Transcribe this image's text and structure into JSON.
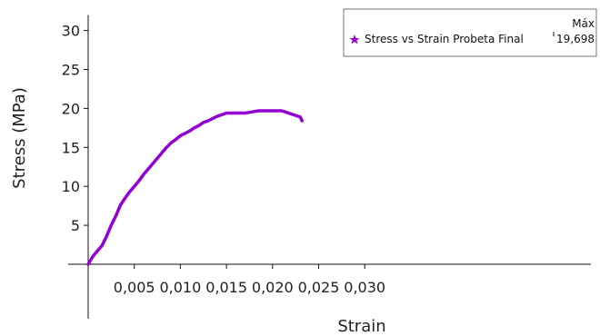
{
  "chart_data": {
    "type": "line",
    "xlabel": "Strain",
    "ylabel": "Stress (MPa)",
    "xlim": [
      0,
      0.032
    ],
    "ylim": [
      -7,
      32
    ],
    "x_ticks": [
      {
        "value": 0.005,
        "label": "0,005"
      },
      {
        "value": 0.01,
        "label": "0,010"
      },
      {
        "value": 0.015,
        "label": "0,015"
      },
      {
        "value": 0.02,
        "label": "0,020"
      },
      {
        "value": 0.025,
        "label": "0,025"
      },
      {
        "value": 0.03,
        "label": "0,030"
      }
    ],
    "y_ticks": [
      {
        "value": 5,
        "label": "5"
      },
      {
        "value": 10,
        "label": "10"
      },
      {
        "value": 15,
        "label": "15"
      },
      {
        "value": 20,
        "label": "20"
      },
      {
        "value": 25,
        "label": "25"
      },
      {
        "value": 30,
        "label": "30"
      }
    ],
    "grid": false,
    "legend_position": "top-right",
    "legend": {
      "column_header": "Máx",
      "marker_icon": "star-icon"
    },
    "series": [
      {
        "name": "Stress vs Strain Probeta Final",
        "max_label": "19,698",
        "color": "#9400d3",
        "x": [
          0.0,
          0.0005,
          0.001,
          0.0015,
          0.002,
          0.0025,
          0.003,
          0.0035,
          0.004,
          0.0045,
          0.005,
          0.0055,
          0.006,
          0.0065,
          0.007,
          0.0075,
          0.008,
          0.0085,
          0.009,
          0.0095,
          0.01,
          0.0105,
          0.011,
          0.0115,
          0.012,
          0.0125,
          0.013,
          0.0135,
          0.014,
          0.0145,
          0.015,
          0.0155,
          0.016,
          0.0165,
          0.017,
          0.0175,
          0.018,
          0.0185,
          0.019,
          0.0195,
          0.02,
          0.0205,
          0.021,
          0.0215,
          0.022,
          0.0225,
          0.023,
          0.0232
        ],
        "y": [
          0.0,
          1.0,
          1.7,
          2.4,
          3.6,
          5.0,
          6.2,
          7.6,
          8.5,
          9.3,
          10.0,
          10.7,
          11.5,
          12.2,
          12.9,
          13.6,
          14.3,
          15.0,
          15.6,
          16.0,
          16.5,
          16.8,
          17.1,
          17.5,
          17.8,
          18.2,
          18.4,
          18.7,
          19.0,
          19.2,
          19.4,
          19.4,
          19.4,
          19.4,
          19.4,
          19.5,
          19.6,
          19.7,
          19.7,
          19.7,
          19.7,
          19.7,
          19.7,
          19.5,
          19.3,
          19.1,
          18.9,
          18.4
        ]
      }
    ]
  }
}
